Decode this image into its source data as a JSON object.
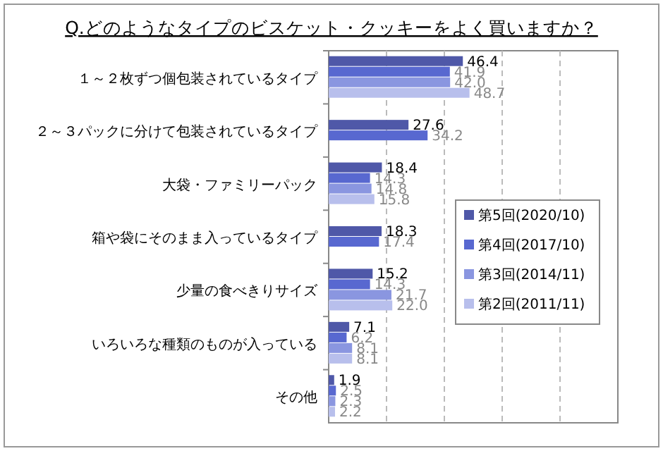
{
  "chart_data": {
    "type": "bar",
    "orientation": "horizontal",
    "title": "Q.どのようなタイプのビスケット・クッキーをよく買いますか？",
    "categories": [
      "１～２枚ずつ個包装されているタイプ",
      "２～３パックに分けて包装されているタイプ",
      "大袋・ファミリーパック",
      "箱や袋にそのまま入っているタイプ",
      "少量の食べきりサイズ",
      "いろいろな種類のものが入っている",
      "その他"
    ],
    "series": [
      {
        "name": "第5回(2020/10)",
        "color": "#4f58a8",
        "values": [
          46.4,
          27.6,
          18.4,
          18.3,
          15.2,
          7.1,
          1.9
        ],
        "value_labels": [
          "46.4",
          "27.6",
          "18.4",
          "18.3",
          "15.2",
          "7.1",
          "1.9"
        ]
      },
      {
        "name": "第4回(2017/10)",
        "color": "#5868d0",
        "values": [
          41.9,
          34.2,
          14.3,
          17.4,
          14.3,
          6.2,
          2.5
        ],
        "value_labels": [
          "41.9",
          "34.2",
          "14.3",
          "17.4",
          "14.3",
          "6.2",
          "2.5"
        ]
      },
      {
        "name": "第3回(2014/11)",
        "color": "#8a96e0",
        "values": [
          42.0,
          null,
          14.8,
          null,
          21.7,
          8.1,
          2.3
        ],
        "value_labels": [
          "42.0",
          null,
          "14.8",
          null,
          "21.7",
          "8.1",
          "2.3"
        ]
      },
      {
        "name": "第2回(2011/11)",
        "color": "#b8bfec",
        "values": [
          48.7,
          null,
          15.8,
          null,
          22.0,
          8.1,
          2.2
        ],
        "value_labels": [
          "48.7",
          null,
          "15.8",
          null,
          "22.0",
          "8.1",
          "2.2"
        ]
      }
    ],
    "xlim": [
      0,
      100
    ],
    "xticks": [
      {
        "value": 20,
        "label": null
      },
      {
        "value": 40,
        "label": null
      },
      {
        "value": 60,
        "label": null
      },
      {
        "value": 80,
        "label": null
      }
    ],
    "tick_labels": "y",
    "grid": "x",
    "legend": "right"
  }
}
